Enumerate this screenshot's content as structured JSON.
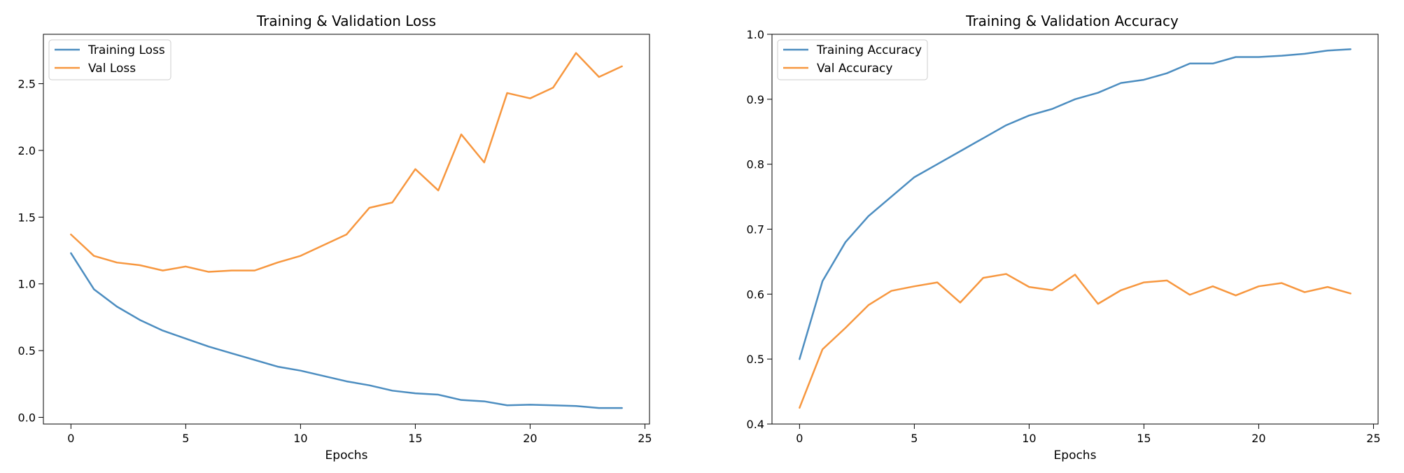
{
  "chart_data": [
    {
      "type": "line",
      "title": "Training & Validation Loss",
      "xlabel": "Epochs",
      "ylabel": "",
      "xlim": [
        -1.2,
        25.2
      ],
      "ylim": [
        -0.05,
        2.87
      ],
      "xticks": [
        0,
        5,
        10,
        15,
        20,
        25
      ],
      "yticks": [
        0.0,
        0.5,
        1.0,
        1.5,
        2.0,
        2.5
      ],
      "ytick_decimals": 1,
      "legend": "top-left",
      "grid": false,
      "x": [
        0,
        1,
        2,
        3,
        4,
        5,
        6,
        7,
        8,
        9,
        10,
        11,
        12,
        13,
        14,
        15,
        16,
        17,
        18,
        19,
        20,
        21,
        22,
        23,
        24
      ],
      "series": [
        {
          "name": "Training Loss",
          "color": "#4c8dc0",
          "values": [
            1.23,
            0.96,
            0.83,
            0.73,
            0.65,
            0.59,
            0.53,
            0.48,
            0.43,
            0.38,
            0.35,
            0.31,
            0.27,
            0.24,
            0.2,
            0.18,
            0.17,
            0.13,
            0.12,
            0.09,
            0.095,
            0.09,
            0.085,
            0.07,
            0.07
          ]
        },
        {
          "name": "Val Loss",
          "color": "#f7973f",
          "values": [
            1.37,
            1.21,
            1.16,
            1.14,
            1.1,
            1.13,
            1.09,
            1.1,
            1.1,
            1.16,
            1.21,
            1.29,
            1.37,
            1.57,
            1.61,
            1.86,
            1.7,
            2.12,
            1.91,
            2.43,
            2.39,
            2.47,
            2.73,
            2.55,
            2.63
          ]
        }
      ]
    },
    {
      "type": "line",
      "title": "Training & Validation Accuracy",
      "xlabel": "Epochs",
      "ylabel": "",
      "xlim": [
        -1.2,
        25.2
      ],
      "ylim": [
        0.4,
        1.0
      ],
      "xticks": [
        0,
        5,
        10,
        15,
        20,
        25
      ],
      "yticks": [
        0.4,
        0.5,
        0.6,
        0.7,
        0.8,
        0.9,
        1.0
      ],
      "ytick_decimals": 1,
      "legend": "top-left",
      "grid": false,
      "x": [
        0,
        1,
        2,
        3,
        4,
        5,
        6,
        7,
        8,
        9,
        10,
        11,
        12,
        13,
        14,
        15,
        16,
        17,
        18,
        19,
        20,
        21,
        22,
        23,
        24
      ],
      "series": [
        {
          "name": "Training Accuracy",
          "color": "#4c8dc0",
          "values": [
            0.5,
            0.62,
            0.68,
            0.72,
            0.75,
            0.78,
            0.8,
            0.82,
            0.84,
            0.86,
            0.875,
            0.885,
            0.9,
            0.91,
            0.925,
            0.93,
            0.94,
            0.955,
            0.955,
            0.965,
            0.965,
            0.967,
            0.97,
            0.975,
            0.977
          ]
        },
        {
          "name": "Val Accuracy",
          "color": "#f7973f",
          "values": [
            0.425,
            0.515,
            0.548,
            0.583,
            0.605,
            0.612,
            0.618,
            0.587,
            0.625,
            0.631,
            0.611,
            0.606,
            0.63,
            0.585,
            0.606,
            0.618,
            0.621,
            0.599,
            0.612,
            0.598,
            0.612,
            0.617,
            0.603,
            0.611,
            0.601
          ]
        }
      ]
    }
  ]
}
